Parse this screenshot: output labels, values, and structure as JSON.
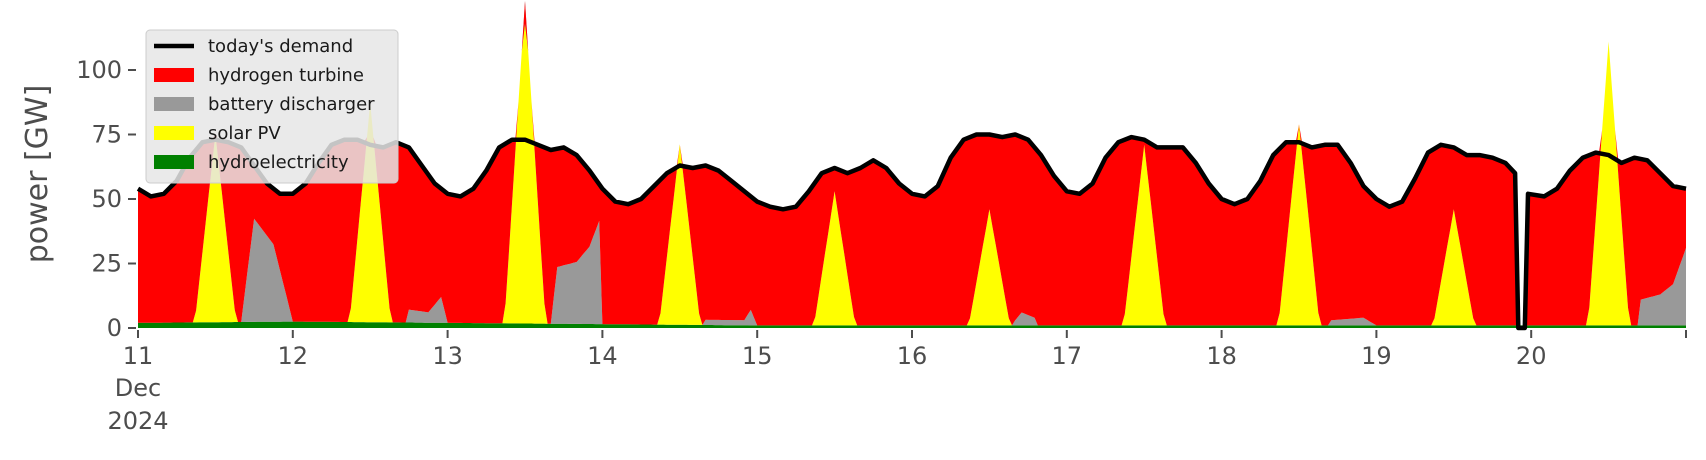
{
  "chart_data": {
    "type": "area",
    "stacked": true,
    "title": "",
    "xlabel": "",
    "ylabel": "power [GW]",
    "ylim": [
      0,
      120
    ],
    "yticks": [
      0,
      25,
      50,
      75,
      100
    ],
    "xlim": [
      "2024-12-11 00:00",
      "2024-12-21 00:00"
    ],
    "xticks": [
      {
        "day": 11,
        "label": "11",
        "sublabel": [
          "Dec",
          "2024"
        ]
      },
      {
        "day": 12,
        "label": "12"
      },
      {
        "day": 13,
        "label": "13"
      },
      {
        "day": 14,
        "label": "14"
      },
      {
        "day": 15,
        "label": "15"
      },
      {
        "day": 16,
        "label": "16"
      },
      {
        "day": 17,
        "label": "17"
      },
      {
        "day": 18,
        "label": "18"
      },
      {
        "day": 19,
        "label": "19"
      },
      {
        "day": 20,
        "label": "20"
      }
    ],
    "grid": false,
    "legend": {
      "placement": "upper-left",
      "entries": [
        {
          "label": "today's demand",
          "kind": "line",
          "color": "#000000"
        },
        {
          "label": "hydrogen turbine",
          "kind": "patch",
          "color": "#ff0000"
        },
        {
          "label": "battery discharger",
          "kind": "patch",
          "color": "#999999"
        },
        {
          "label": "solar PV",
          "kind": "patch",
          "color": "#ffff00"
        },
        {
          "label": "hydroelectricity",
          "kind": "patch",
          "color": "#008000"
        }
      ]
    },
    "series": [
      {
        "name": "hydroelectricity",
        "color": "#008000",
        "points": [
          [
            "2024-12-11 00:00",
            2
          ],
          [
            "2024-12-12 00:00",
            2.5
          ],
          [
            "2024-12-13 00:00",
            2
          ],
          [
            "2024-12-14 00:00",
            1.5
          ],
          [
            "2024-12-15 00:00",
            1
          ],
          [
            "2024-12-16 00:00",
            1
          ],
          [
            "2024-12-17 00:00",
            1
          ],
          [
            "2024-12-18 00:00",
            1
          ],
          [
            "2024-12-19 00:00",
            1
          ],
          [
            "2024-12-20 00:00",
            1
          ],
          [
            "2024-12-21 00:00",
            1
          ]
        ]
      },
      {
        "name": "solar PV",
        "color": "#ffff00",
        "peaks": [
          {
            "center": "2024-12-11 12:00",
            "peak": 73
          },
          {
            "center": "2024-12-12 12:00",
            "peak": 85
          },
          {
            "center": "2024-12-13 12:00",
            "peak": 125
          },
          {
            "center": "2024-12-14 12:00",
            "peak": 70
          },
          {
            "center": "2024-12-15 12:00",
            "peak": 52
          },
          {
            "center": "2024-12-16 12:00",
            "peak": 45
          },
          {
            "center": "2024-12-17 12:00",
            "peak": 70
          },
          {
            "center": "2024-12-18 12:00",
            "peak": 78
          },
          {
            "center": "2024-12-19 12:00",
            "peak": 45
          },
          {
            "center": "2024-12-20 12:00",
            "peak": 110
          }
        ]
      },
      {
        "name": "battery discharger",
        "color": "#999999",
        "points": [
          [
            "2024-12-11 16:00",
            0
          ],
          [
            "2024-12-11 18:00",
            40
          ],
          [
            "2024-12-11 21:00",
            30
          ],
          [
            "2024-12-12 00:00",
            0
          ],
          [
            "2024-12-12 18:00",
            5
          ],
          [
            "2024-12-12 21:00",
            4
          ],
          [
            "2024-12-12 23:00",
            10
          ],
          [
            "2024-12-13 00:00",
            0
          ],
          [
            "2024-12-13 16:00",
            0
          ],
          [
            "2024-12-13 17:00",
            22
          ],
          [
            "2024-12-13 20:00",
            24
          ],
          [
            "2024-12-13 22:00",
            30
          ],
          [
            "2024-12-13 23:30",
            40
          ],
          [
            "2024-12-14 00:00",
            0
          ],
          [
            "2024-12-14 16:00",
            2
          ],
          [
            "2024-12-14 22:00",
            2
          ],
          [
            "2024-12-14 23:00",
            6
          ],
          [
            "2024-12-15 00:00",
            0
          ],
          [
            "2024-12-16 16:00",
            2
          ],
          [
            "2024-12-16 17:00",
            5
          ],
          [
            "2024-12-16 19:00",
            3
          ],
          [
            "2024-12-18 17:00",
            2
          ],
          [
            "2024-12-18 22:00",
            3
          ],
          [
            "2024-12-19 00:00",
            0
          ],
          [
            "2024-12-20 17:00",
            10
          ],
          [
            "2024-12-20 20:00",
            12
          ],
          [
            "2024-12-20 22:00",
            16
          ],
          [
            "2024-12-21 00:00",
            30
          ]
        ]
      },
      {
        "name": "hydrogen turbine",
        "color": "#ff0000",
        "note_derived": "fills the remainder up to today's demand"
      },
      {
        "name": "today's demand",
        "color": "#000000",
        "points": [
          [
            "2024-12-11 00:00",
            54
          ],
          [
            "2024-12-11 02:00",
            51
          ],
          [
            "2024-12-11 04:00",
            52
          ],
          [
            "2024-12-11 06:00",
            57
          ],
          [
            "2024-12-11 08:00",
            66
          ],
          [
            "2024-12-11 10:00",
            72
          ],
          [
            "2024-12-11 12:00",
            73
          ],
          [
            "2024-12-11 14:00",
            72
          ],
          [
            "2024-12-11 16:00",
            70
          ],
          [
            "2024-12-11 18:00",
            63
          ],
          [
            "2024-12-11 20:00",
            56
          ],
          [
            "2024-12-11 22:00",
            52
          ],
          [
            "2024-12-12 00:00",
            52
          ],
          [
            "2024-12-12 02:00",
            56
          ],
          [
            "2024-12-12 04:00",
            64
          ],
          [
            "2024-12-12 06:00",
            71
          ],
          [
            "2024-12-12 08:00",
            73
          ],
          [
            "2024-12-12 10:00",
            73
          ],
          [
            "2024-12-12 12:00",
            71
          ],
          [
            "2024-12-12 14:00",
            70
          ],
          [
            "2024-12-12 16:00",
            72
          ],
          [
            "2024-12-12 18:00",
            70
          ],
          [
            "2024-12-12 20:00",
            63
          ],
          [
            "2024-12-12 22:00",
            56
          ],
          [
            "2024-12-13 00:00",
            52
          ],
          [
            "2024-12-13 02:00",
            51
          ],
          [
            "2024-12-13 04:00",
            54
          ],
          [
            "2024-12-13 06:00",
            61
          ],
          [
            "2024-12-13 08:00",
            70
          ],
          [
            "2024-12-13 10:00",
            73
          ],
          [
            "2024-12-13 12:00",
            73
          ],
          [
            "2024-12-13 14:00",
            71
          ],
          [
            "2024-12-13 16:00",
            69
          ],
          [
            "2024-12-13 18:00",
            70
          ],
          [
            "2024-12-13 20:00",
            67
          ],
          [
            "2024-12-13 22:00",
            61
          ],
          [
            "2024-12-14 00:00",
            54
          ],
          [
            "2024-12-14 02:00",
            49
          ],
          [
            "2024-12-14 04:00",
            48
          ],
          [
            "2024-12-14 06:00",
            50
          ],
          [
            "2024-12-14 08:00",
            55
          ],
          [
            "2024-12-14 10:00",
            60
          ],
          [
            "2024-12-14 12:00",
            63
          ],
          [
            "2024-12-14 14:00",
            62
          ],
          [
            "2024-12-14 16:00",
            63
          ],
          [
            "2024-12-14 18:00",
            61
          ],
          [
            "2024-12-14 20:00",
            57
          ],
          [
            "2024-12-14 22:00",
            53
          ],
          [
            "2024-12-15 00:00",
            49
          ],
          [
            "2024-12-15 02:00",
            47
          ],
          [
            "2024-12-15 04:00",
            46
          ],
          [
            "2024-12-15 06:00",
            47
          ],
          [
            "2024-12-15 08:00",
            53
          ],
          [
            "2024-12-15 10:00",
            60
          ],
          [
            "2024-12-15 12:00",
            62
          ],
          [
            "2024-12-15 14:00",
            60
          ],
          [
            "2024-12-15 16:00",
            62
          ],
          [
            "2024-12-15 18:00",
            65
          ],
          [
            "2024-12-15 20:00",
            62
          ],
          [
            "2024-12-15 22:00",
            56
          ],
          [
            "2024-12-16 00:00",
            52
          ],
          [
            "2024-12-16 02:00",
            51
          ],
          [
            "2024-12-16 04:00",
            55
          ],
          [
            "2024-12-16 06:00",
            66
          ],
          [
            "2024-12-16 08:00",
            73
          ],
          [
            "2024-12-16 10:00",
            75
          ],
          [
            "2024-12-16 12:00",
            75
          ],
          [
            "2024-12-16 14:00",
            74
          ],
          [
            "2024-12-16 16:00",
            75
          ],
          [
            "2024-12-16 18:00",
            73
          ],
          [
            "2024-12-16 20:00",
            67
          ],
          [
            "2024-12-16 22:00",
            59
          ],
          [
            "2024-12-17 00:00",
            53
          ],
          [
            "2024-12-17 02:00",
            52
          ],
          [
            "2024-12-17 04:00",
            56
          ],
          [
            "2024-12-17 06:00",
            66
          ],
          [
            "2024-12-17 08:00",
            72
          ],
          [
            "2024-12-17 10:00",
            74
          ],
          [
            "2024-12-17 12:00",
            73
          ],
          [
            "2024-12-17 14:00",
            70
          ],
          [
            "2024-12-17 16:00",
            70
          ],
          [
            "2024-12-17 18:00",
            70
          ],
          [
            "2024-12-17 20:00",
            64
          ],
          [
            "2024-12-17 22:00",
            56
          ],
          [
            "2024-12-18 00:00",
            50
          ],
          [
            "2024-12-18 02:00",
            48
          ],
          [
            "2024-12-18 04:00",
            50
          ],
          [
            "2024-12-18 06:00",
            57
          ],
          [
            "2024-12-18 08:00",
            67
          ],
          [
            "2024-12-18 10:00",
            72
          ],
          [
            "2024-12-18 12:00",
            72
          ],
          [
            "2024-12-18 14:00",
            70
          ],
          [
            "2024-12-18 16:00",
            71
          ],
          [
            "2024-12-18 18:00",
            71
          ],
          [
            "2024-12-18 20:00",
            64
          ],
          [
            "2024-12-18 22:00",
            55
          ],
          [
            "2024-12-19 00:00",
            50
          ],
          [
            "2024-12-19 02:00",
            47
          ],
          [
            "2024-12-19 04:00",
            49
          ],
          [
            "2024-12-19 06:00",
            58
          ],
          [
            "2024-12-19 08:00",
            68
          ],
          [
            "2024-12-19 10:00",
            71
          ],
          [
            "2024-12-19 12:00",
            70
          ],
          [
            "2024-12-19 14:00",
            67
          ],
          [
            "2024-12-19 16:00",
            67
          ],
          [
            "2024-12-19 18:00",
            66
          ],
          [
            "2024-12-19 20:00",
            64
          ],
          [
            "2024-12-19 21:30",
            60
          ],
          [
            "2024-12-19 22:00",
            0
          ],
          [
            "2024-12-19 23:00",
            0
          ],
          [
            "2024-12-19 23:30",
            52
          ],
          [
            "2024-12-20 02:00",
            51
          ],
          [
            "2024-12-20 04:00",
            54
          ],
          [
            "2024-12-20 06:00",
            61
          ],
          [
            "2024-12-20 08:00",
            66
          ],
          [
            "2024-12-20 10:00",
            68
          ],
          [
            "2024-12-20 12:00",
            67
          ],
          [
            "2024-12-20 14:00",
            64
          ],
          [
            "2024-12-20 16:00",
            66
          ],
          [
            "2024-12-20 18:00",
            65
          ],
          [
            "2024-12-20 20:00",
            60
          ],
          [
            "2024-12-20 22:00",
            55
          ],
          [
            "2024-12-21 00:00",
            54
          ]
        ]
      }
    ]
  }
}
